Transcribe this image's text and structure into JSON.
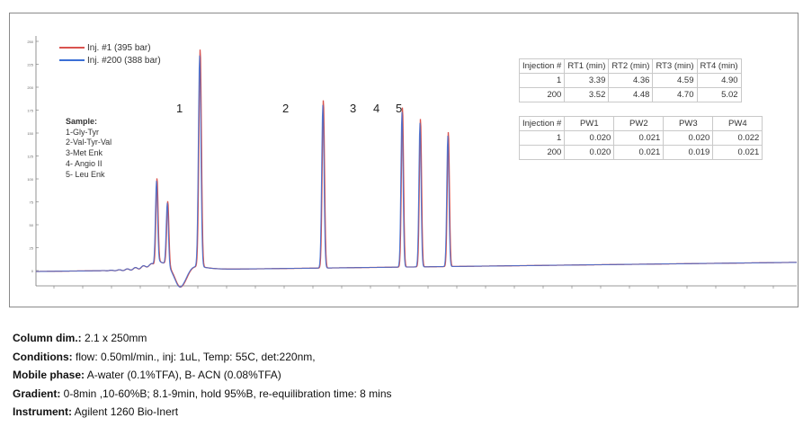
{
  "chart_data": {
    "type": "line",
    "series": [
      {
        "name": "Inj. #1 (395 bar)",
        "color": "#d9534f"
      },
      {
        "name": "Inj. #200 (388 bar)",
        "color": "#3b6fd6"
      }
    ],
    "peak_labels": [
      "1",
      "2",
      "3",
      "4",
      "5"
    ],
    "grid": false,
    "legend_position": "top-left"
  },
  "y_ticks": [
    "250",
    "225",
    "200",
    "175",
    "150",
    "125",
    "100",
    "75",
    "50",
    "25",
    "0"
  ],
  "sample": {
    "title": "Sample:",
    "items": [
      "1-Gly-Tyr",
      "2-Val-Tyr-Val",
      "3-Met Enk",
      "4- Angio II",
      "5- Leu Enk"
    ]
  },
  "rt_table": {
    "headers": [
      "Injection #",
      "RT1 (min)",
      "RT2 (min)",
      "RT3 (min)",
      "RT4 (min)"
    ],
    "rows": [
      [
        "1",
        "3.39",
        "4.36",
        "4.59",
        "4.90"
      ],
      [
        "200",
        "3.52",
        "4.48",
        "4.70",
        "5.02"
      ]
    ]
  },
  "pw_table": {
    "headers": [
      "Injection #",
      "PW1",
      "PW2",
      "PW3",
      "PW4"
    ],
    "rows": [
      [
        "1",
        "0.020",
        "0.021",
        "0.020",
        "0.022"
      ],
      [
        "200",
        "0.020",
        "0.021",
        "0.019",
        "0.021"
      ]
    ]
  },
  "caption": [
    {
      "label": "Column dim.:",
      "text": " 2.1 x 250mm"
    },
    {
      "label": "Conditions:",
      "text": " flow: 0.50ml/min., inj: 1uL, Temp: 55C, det:220nm,"
    },
    {
      "label": "Mobile phase:",
      "text": " A-water (0.1%TFA), B- ACN (0.08%TFA)"
    },
    {
      "label": "Gradient:",
      "text": "  0-8min ,10-60%B; 8.1-9min, hold 95%B, re-equilibration time: 8 mins"
    },
    {
      "label": "Instrument:",
      "text": " Agilent 1260 Bio-Inert"
    }
  ]
}
